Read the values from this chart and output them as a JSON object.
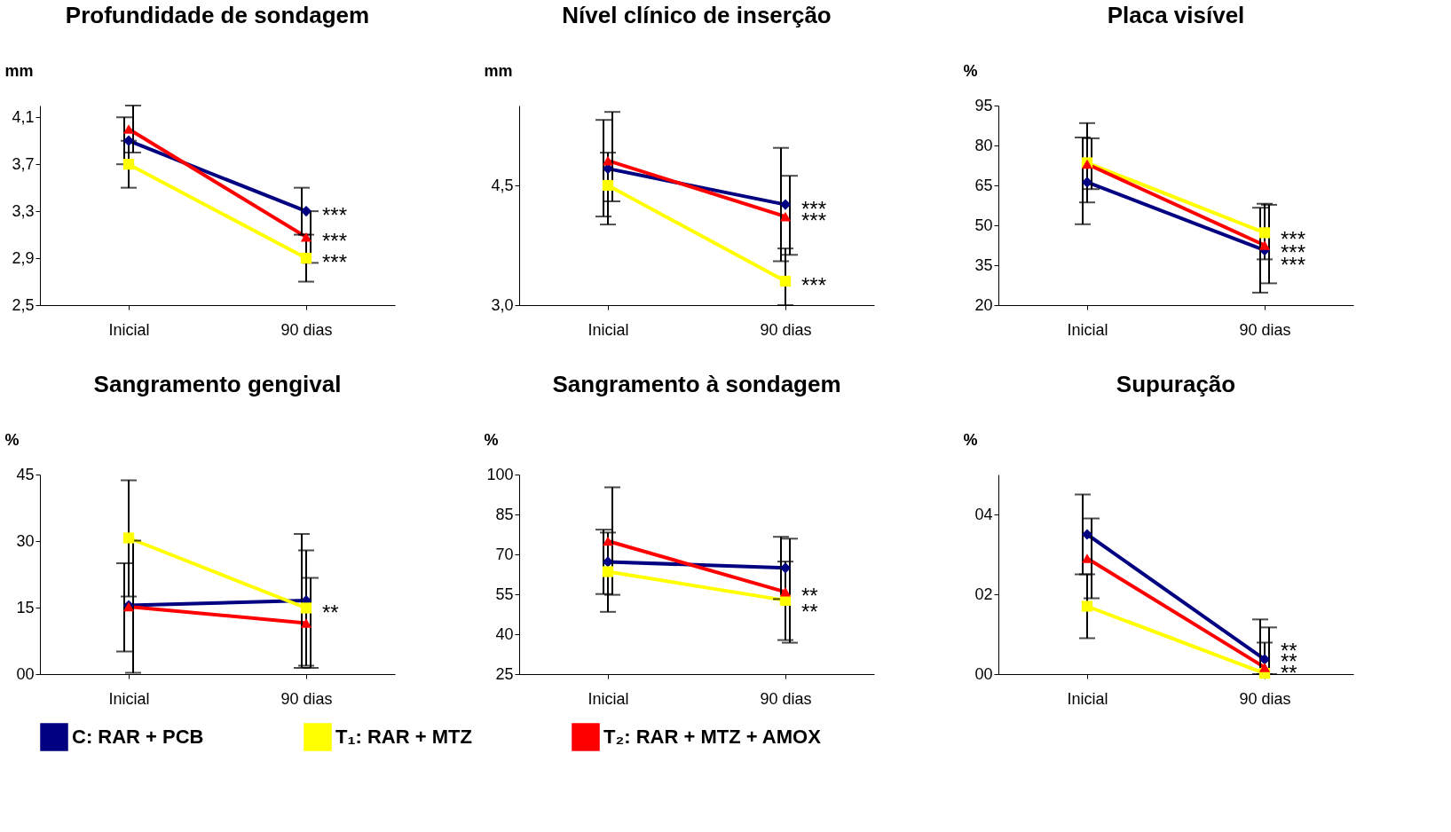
{
  "chart_data": [
    {
      "type": "line",
      "title": "Profundidade de sondagem",
      "ylabel": "mm",
      "categories": [
        "Inicial",
        "90 dias"
      ],
      "ylim": [
        2.5,
        4.2
      ],
      "yticks": [
        {
          "value": 2.5,
          "label": "2,5"
        },
        {
          "value": 2.9,
          "label": "2,9"
        },
        {
          "value": 3.3,
          "label": "3,3"
        },
        {
          "value": 3.7,
          "label": "3,7"
        },
        {
          "value": 4.1,
          "label": "4,1"
        }
      ],
      "legend": "bottom",
      "grid": false,
      "series": [
        {
          "name": "C: RAR + PCB",
          "color": "#000080",
          "marker": "diamond",
          "values": [
            3.9,
            3.3
          ],
          "errors": [
            [
              3.7,
              4.1
            ],
            [
              3.1,
              3.5
            ]
          ]
        },
        {
          "name": "T₁: RAR + MTZ",
          "color": "#ffff00",
          "marker": "square",
          "values": [
            3.7,
            2.9
          ],
          "errors": [
            [
              3.5,
              3.9
            ],
            [
              2.7,
              3.1
            ]
          ]
        },
        {
          "name": "T₂: RAR + MTZ + AMOX",
          "color": "#ff0000",
          "marker": "triangle",
          "values": [
            4.0,
            3.08
          ],
          "errors": [
            [
              3.8,
              4.2
            ],
            [
              2.86,
              3.3
            ]
          ]
        }
      ],
      "annotations": [
        {
          "text": "***",
          "x": "90 dias",
          "y": 3.3
        },
        {
          "text": "***",
          "x": "90 dias",
          "y": 3.08
        },
        {
          "text": "***",
          "x": "90 dias",
          "y": 2.9
        }
      ]
    },
    {
      "type": "line",
      "title": "Nível clínico de inserção",
      "ylabel": "mm",
      "categories": [
        "Inicial",
        "90 dias"
      ],
      "ylim": [
        3.0,
        5.5
      ],
      "yticks": [
        {
          "value": 3.0,
          "label": "3,0"
        },
        {
          "value": 4.5,
          "label": "4,5"
        }
      ],
      "legend": "bottom",
      "grid": false,
      "series": [
        {
          "name": "C: RAR + PCB",
          "color": "#000080",
          "marker": "diamond",
          "values": [
            4.71,
            4.26
          ],
          "errors": [
            [
              4.11,
              5.32
            ],
            [
              3.55,
              4.97
            ]
          ]
        },
        {
          "name": "T₁: RAR + MTZ",
          "color": "#ffff00",
          "marker": "square",
          "values": [
            4.5,
            3.3
          ],
          "errors": [
            [
              4.01,
              4.91
            ],
            [
              3.0,
              3.71
            ]
          ]
        },
        {
          "name": "T₂: RAR + MTZ + AMOX",
          "color": "#ff0000",
          "marker": "triangle",
          "values": [
            4.81,
            4.11
          ],
          "errors": [
            [
              4.3,
              5.42
            ],
            [
              3.63,
              4.62
            ]
          ]
        }
      ],
      "annotations": [
        {
          "text": "***",
          "x": "90 dias",
          "y": 4.26
        },
        {
          "text": "***",
          "x": "90 dias",
          "y": 4.11
        },
        {
          "text": "***",
          "x": "90 dias",
          "y": 3.3
        }
      ]
    },
    {
      "type": "line",
      "title": "Placa visível",
      "ylabel": "%",
      "categories": [
        "Inicial",
        "90 dias"
      ],
      "ylim": [
        20,
        95
      ],
      "yticks": [
        20,
        35,
        50,
        65,
        80,
        95
      ],
      "legend": "bottom",
      "grid": false,
      "series": [
        {
          "name": "C: RAR + PCB",
          "color": "#000080",
          "marker": "diamond",
          "values": [
            66.2,
            40.6
          ],
          "errors": [
            [
              50.4,
              83.0
            ],
            [
              24.7,
              56.6
            ]
          ]
        },
        {
          "name": "T₁: RAR + MTZ",
          "color": "#ffff00",
          "marker": "square",
          "values": [
            73.5,
            47.2
          ],
          "errors": [
            [
              58.6,
              88.4
            ],
            [
              37.2,
              58.1
            ]
          ]
        },
        {
          "name": "T₂: RAR + MTZ + AMOX",
          "color": "#ff0000",
          "marker": "triangle",
          "values": [
            73.0,
            42.5
          ],
          "errors": [
            [
              63.6,
              82.7
            ],
            [
              28.2,
              57.7
            ]
          ]
        }
      ],
      "annotations": [
        {
          "text": "***",
          "x": "90 dias",
          "y": 46.4
        },
        {
          "text": "***",
          "x": "90 dias",
          "y": 41.5
        },
        {
          "text": "***",
          "x": "90 dias",
          "y": 36.8
        }
      ]
    },
    {
      "type": "line",
      "title": "Sangramento gengival",
      "ylabel": "%",
      "categories": [
        "Inicial",
        "90 dias"
      ],
      "ylim": [
        0,
        45
      ],
      "yticks": [
        {
          "value": 0,
          "label": "00"
        },
        15,
        30,
        45
      ],
      "legend": "bottom",
      "grid": false,
      "series": [
        {
          "name": "C: RAR + PCB",
          "color": "#000080",
          "marker": "diamond",
          "values": [
            15.5,
            16.6
          ],
          "errors": [
            [
              5.1,
              25.0
            ],
            [
              1.4,
              31.6
            ]
          ]
        },
        {
          "name": "T₁: RAR + MTZ",
          "color": "#ffff00",
          "marker": "square",
          "values": [
            30.7,
            14.9
          ],
          "errors": [
            [
              17.5,
              43.7
            ],
            [
              1.9,
              27.9
            ]
          ]
        },
        {
          "name": "T₂: RAR + MTZ + AMOX",
          "color": "#ff0000",
          "marker": "triangle",
          "values": [
            15.2,
            11.5
          ],
          "errors": [
            [
              0.3,
              30.1
            ],
            [
              1.4,
              21.7
            ]
          ]
        }
      ],
      "annotations": [
        {
          "text": "**",
          "x": "90 dias",
          "y": 14.9
        }
      ]
    },
    {
      "type": "line",
      "title": "Sangramento à sondagem",
      "ylabel": "%",
      "categories": [
        "Inicial",
        "90 dias"
      ],
      "ylim": [
        25,
        100
      ],
      "yticks": [
        25,
        40,
        55,
        70,
        85,
        100
      ],
      "legend": "bottom",
      "grid": false,
      "series": [
        {
          "name": "C: RAR + PCB",
          "color": "#000080",
          "marker": "diamond",
          "values": [
            67.2,
            64.9
          ],
          "errors": [
            [
              55.1,
              79.3
            ],
            [
              53.2,
              76.6
            ]
          ]
        },
        {
          "name": "T₁: RAR + MTZ",
          "color": "#ffff00",
          "marker": "square",
          "values": [
            63.5,
            52.7
          ],
          "errors": [
            [
              48.4,
              78.2
            ],
            [
              37.8,
              67.3
            ]
          ]
        },
        {
          "name": "T₂: RAR + MTZ + AMOX",
          "color": "#ff0000",
          "marker": "triangle",
          "values": [
            75.0,
            55.9
          ],
          "errors": [
            [
              54.8,
              95.2
            ],
            [
              36.8,
              75.9
            ]
          ]
        }
      ],
      "annotations": [
        {
          "text": "**",
          "x": "90 dias",
          "y": 55.9
        },
        {
          "text": "**",
          "x": "90 dias",
          "y": 50.0
        }
      ]
    },
    {
      "type": "line",
      "title": "Supuração",
      "ylabel": "%",
      "categories": [
        "Inicial",
        "90 dias"
      ],
      "ylim": [
        0,
        5
      ],
      "yticks": [
        {
          "value": 0,
          "label": "00"
        },
        {
          "value": 2,
          "label": "02"
        },
        {
          "value": 4,
          "label": "04"
        }
      ],
      "legend": "bottom",
      "grid": false,
      "series": [
        {
          "name": "C: RAR + PCB",
          "color": "#000080",
          "marker": "diamond",
          "values": [
            3.5,
            0.37
          ],
          "errors": [
            [
              2.5,
              4.5
            ],
            [
              0,
              1.37
            ]
          ]
        },
        {
          "name": "T₁: RAR + MTZ",
          "color": "#ffff00",
          "marker": "square",
          "values": [
            1.7,
            0.02
          ],
          "errors": [
            [
              0.9,
              2.5
            ],
            [
              0,
              0.79
            ]
          ]
        },
        {
          "name": "T₂: RAR + MTZ + AMOX",
          "color": "#ff0000",
          "marker": "triangle",
          "values": [
            2.9,
            0.17
          ],
          "errors": [
            [
              1.9,
              3.9
            ],
            [
              0,
              1.17
            ]
          ]
        }
      ],
      "annotations": [
        {
          "text": "**",
          "x": "90 dias",
          "y": 0.7
        },
        {
          "text": "**",
          "x": "90 dias",
          "y": 0.42
        },
        {
          "text": "**",
          "x": "90 dias",
          "y": 0.14
        }
      ]
    }
  ]
}
